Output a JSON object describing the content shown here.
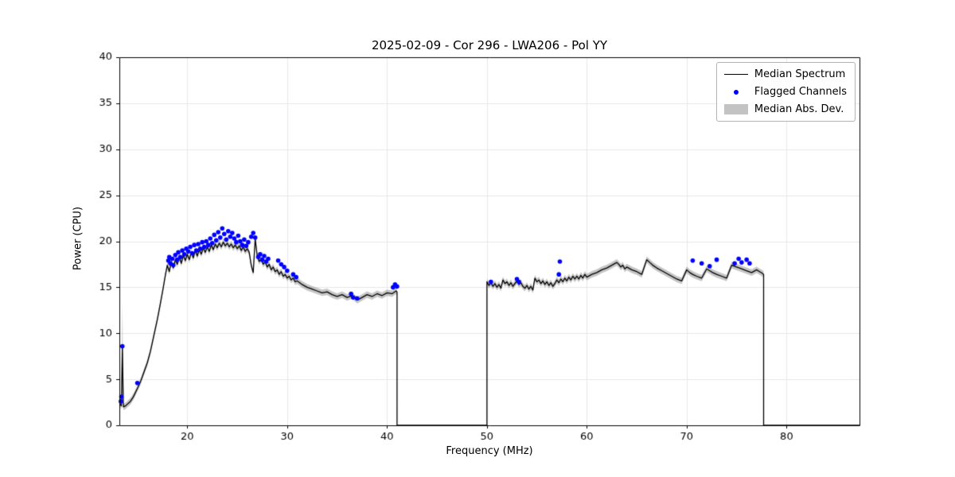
{
  "title": "2025-02-09 - Cor 296 - LWA206 - Pol YY",
  "xlabel": "Frequency (MHz)",
  "ylabel": "Power (CPU)",
  "legend": {
    "median_spectrum": "Median Spectrum",
    "flagged_channels": "Flagged Channels",
    "median_abs_dev": "Median Abs. Dev."
  },
  "colors": {
    "median_line": "#000000",
    "flagged": "#0000ff",
    "mad_band": "rgba(128,128,128,0.45)",
    "grid": "#e7e7e7",
    "spine": "#000000",
    "tick_text": "#000000"
  },
  "chart_data": {
    "type": "line",
    "title": "2025-02-09 - Cor 296 - LWA206 - Pol YY",
    "xlabel": "Frequency (MHz)",
    "ylabel": "Power (CPU)",
    "xlim": [
      13.2,
      87.3
    ],
    "ylim": [
      0,
      40
    ],
    "xticks": [
      20,
      30,
      40,
      50,
      60,
      70,
      80
    ],
    "yticks": [
      0,
      5,
      10,
      15,
      20,
      25,
      30,
      35,
      40
    ],
    "grid": true,
    "legend_position": "upper right",
    "mad": {
      "default_halfwidth": 0.35,
      "spike_x": 13.5,
      "spike_halfwidth": 5.0
    },
    "median_spectrum": [
      [
        13.3,
        2.3
      ],
      [
        13.4,
        2.1
      ],
      [
        13.5,
        8.6
      ],
      [
        13.6,
        2.0
      ],
      [
        13.8,
        2.1
      ],
      [
        14.0,
        2.3
      ],
      [
        14.3,
        2.6
      ],
      [
        14.6,
        3.1
      ],
      [
        15.0,
        4.0
      ],
      [
        15.3,
        4.7
      ],
      [
        15.6,
        5.6
      ],
      [
        16.0,
        6.8
      ],
      [
        16.3,
        8.0
      ],
      [
        16.6,
        9.5
      ],
      [
        17.0,
        11.5
      ],
      [
        17.3,
        13.2
      ],
      [
        17.6,
        15.0
      ],
      [
        17.8,
        16.3
      ],
      [
        18.0,
        17.4
      ],
      [
        18.2,
        16.7
      ],
      [
        18.4,
        17.8
      ],
      [
        18.6,
        17.1
      ],
      [
        18.8,
        18.0
      ],
      [
        19.0,
        17.5
      ],
      [
        19.2,
        18.3
      ],
      [
        19.4,
        17.6
      ],
      [
        19.6,
        18.5
      ],
      [
        19.8,
        17.9
      ],
      [
        20.0,
        18.6
      ],
      [
        20.2,
        18.0
      ],
      [
        20.4,
        18.8
      ],
      [
        20.6,
        18.2
      ],
      [
        20.8,
        19.0
      ],
      [
        21.0,
        18.4
      ],
      [
        21.2,
        19.1
      ],
      [
        21.4,
        18.6
      ],
      [
        21.6,
        19.3
      ],
      [
        21.8,
        18.8
      ],
      [
        22.0,
        19.4
      ],
      [
        22.2,
        18.9
      ],
      [
        22.4,
        19.6
      ],
      [
        22.6,
        19.1
      ],
      [
        22.8,
        19.7
      ],
      [
        23.0,
        19.3
      ],
      [
        23.2,
        19.8
      ],
      [
        23.4,
        19.4
      ],
      [
        23.6,
        19.9
      ],
      [
        23.8,
        19.5
      ],
      [
        24.0,
        19.8
      ],
      [
        24.2,
        19.4
      ],
      [
        24.4,
        19.7
      ],
      [
        24.6,
        19.3
      ],
      [
        24.8,
        19.6
      ],
      [
        25.0,
        19.2
      ],
      [
        25.2,
        19.5
      ],
      [
        25.4,
        19.0
      ],
      [
        25.6,
        19.4
      ],
      [
        25.8,
        18.9
      ],
      [
        26.0,
        19.2
      ],
      [
        26.2,
        18.8
      ],
      [
        26.4,
        17.4
      ],
      [
        26.6,
        16.6
      ],
      [
        26.8,
        20.3
      ],
      [
        27.0,
        18.4
      ],
      [
        27.2,
        17.8
      ],
      [
        27.4,
        18.1
      ],
      [
        27.6,
        17.5
      ],
      [
        27.8,
        17.8
      ],
      [
        28.0,
        17.2
      ],
      [
        28.2,
        17.5
      ],
      [
        28.4,
        16.9
      ],
      [
        28.6,
        17.2
      ],
      [
        28.8,
        16.7
      ],
      [
        29.0,
        16.9
      ],
      [
        29.2,
        16.4
      ],
      [
        29.4,
        16.7
      ],
      [
        29.6,
        16.2
      ],
      [
        29.8,
        16.4
      ],
      [
        30.0,
        16.0
      ],
      [
        30.2,
        16.2
      ],
      [
        30.4,
        15.8
      ],
      [
        30.6,
        16.0
      ],
      [
        30.8,
        15.6
      ],
      [
        31.0,
        15.7
      ],
      [
        31.5,
        15.3
      ],
      [
        32.0,
        15.0
      ],
      [
        32.5,
        14.8
      ],
      [
        33.0,
        14.6
      ],
      [
        33.5,
        14.4
      ],
      [
        34.0,
        14.5
      ],
      [
        34.5,
        14.2
      ],
      [
        35.0,
        14.0
      ],
      [
        35.5,
        14.2
      ],
      [
        36.0,
        13.9
      ],
      [
        36.5,
        14.1
      ],
      [
        37.0,
        13.6
      ],
      [
        37.5,
        13.9
      ],
      [
        38.0,
        14.2
      ],
      [
        38.5,
        14.0
      ],
      [
        39.0,
        14.3
      ],
      [
        39.5,
        14.1
      ],
      [
        40.0,
        14.4
      ],
      [
        40.5,
        14.3
      ],
      [
        40.9,
        14.6
      ],
      [
        41.0,
        14.5
      ],
      [
        41.0,
        0.0
      ],
      [
        50.0,
        0.0
      ],
      [
        50.0,
        15.6
      ],
      [
        50.2,
        15.2
      ],
      [
        50.4,
        15.5
      ],
      [
        50.6,
        15.1
      ],
      [
        50.8,
        15.4
      ],
      [
        51.0,
        15.0
      ],
      [
        51.2,
        15.3
      ],
      [
        51.4,
        14.9
      ],
      [
        51.6,
        15.8
      ],
      [
        51.8,
        15.4
      ],
      [
        52.0,
        15.6
      ],
      [
        52.2,
        15.2
      ],
      [
        52.4,
        15.5
      ],
      [
        52.6,
        15.1
      ],
      [
        52.8,
        15.4
      ],
      [
        53.0,
        15.7
      ],
      [
        53.2,
        15.3
      ],
      [
        53.4,
        15.5
      ],
      [
        53.6,
        15.1
      ],
      [
        53.8,
        14.9
      ],
      [
        54.0,
        15.2
      ],
      [
        54.2,
        14.8
      ],
      [
        54.4,
        15.1
      ],
      [
        54.6,
        14.7
      ],
      [
        54.8,
        16.0
      ],
      [
        55.0,
        15.6
      ],
      [
        55.2,
        15.8
      ],
      [
        55.4,
        15.4
      ],
      [
        55.6,
        15.7
      ],
      [
        55.8,
        15.3
      ],
      [
        56.0,
        15.6
      ],
      [
        56.2,
        15.2
      ],
      [
        56.4,
        15.5
      ],
      [
        56.6,
        15.1
      ],
      [
        56.8,
        15.4
      ],
      [
        57.0,
        15.8
      ],
      [
        57.2,
        15.5
      ],
      [
        57.4,
        15.9
      ],
      [
        57.6,
        15.6
      ],
      [
        57.8,
        16.0
      ],
      [
        58.0,
        15.7
      ],
      [
        58.2,
        16.1
      ],
      [
        58.4,
        15.8
      ],
      [
        58.6,
        16.2
      ],
      [
        58.8,
        15.9
      ],
      [
        59.0,
        16.2
      ],
      [
        59.2,
        15.9
      ],
      [
        59.4,
        16.3
      ],
      [
        59.6,
        16.0
      ],
      [
        59.8,
        16.4
      ],
      [
        60.0,
        16.1
      ],
      [
        60.5,
        16.4
      ],
      [
        61.0,
        16.6
      ],
      [
        61.5,
        16.9
      ],
      [
        62.0,
        17.1
      ],
      [
        62.5,
        17.4
      ],
      [
        63.0,
        17.7
      ],
      [
        63.2,
        17.5
      ],
      [
        63.4,
        17.2
      ],
      [
        63.6,
        17.4
      ],
      [
        63.8,
        17.0
      ],
      [
        64.0,
        17.2
      ],
      [
        64.5,
        16.9
      ],
      [
        65.0,
        16.7
      ],
      [
        65.5,
        16.4
      ],
      [
        66.0,
        18.0
      ],
      [
        66.3,
        17.7
      ],
      [
        66.6,
        17.4
      ],
      [
        67.0,
        17.1
      ],
      [
        67.5,
        16.8
      ],
      [
        68.0,
        16.5
      ],
      [
        68.5,
        16.2
      ],
      [
        69.0,
        15.9
      ],
      [
        69.5,
        15.7
      ],
      [
        70.0,
        16.9
      ],
      [
        70.3,
        16.6
      ],
      [
        70.6,
        16.4
      ],
      [
        71.0,
        16.2
      ],
      [
        71.5,
        16.0
      ],
      [
        72.0,
        17.0
      ],
      [
        72.3,
        16.8
      ],
      [
        72.6,
        16.6
      ],
      [
        73.0,
        16.4
      ],
      [
        73.5,
        16.2
      ],
      [
        74.0,
        16.0
      ],
      [
        74.5,
        17.4
      ],
      [
        75.0,
        17.2
      ],
      [
        75.5,
        17.0
      ],
      [
        76.0,
        16.8
      ],
      [
        76.5,
        16.6
      ],
      [
        77.0,
        16.9
      ],
      [
        77.3,
        16.7
      ],
      [
        77.6,
        16.5
      ],
      [
        77.7,
        16.4
      ],
      [
        77.7,
        0.0
      ],
      [
        87.3,
        0.0
      ]
    ],
    "flagged_channels": [
      [
        13.35,
        2.6
      ],
      [
        13.4,
        3.1
      ],
      [
        13.5,
        8.6
      ],
      [
        15.0,
        4.6
      ],
      [
        18.1,
        17.9
      ],
      [
        18.2,
        18.3
      ],
      [
        18.3,
        17.6
      ],
      [
        18.5,
        18.1
      ],
      [
        18.6,
        17.4
      ],
      [
        18.8,
        18.5
      ],
      [
        19.0,
        18.0
      ],
      [
        19.1,
        18.8
      ],
      [
        19.3,
        18.3
      ],
      [
        19.5,
        19.0
      ],
      [
        19.7,
        18.6
      ],
      [
        19.9,
        19.2
      ],
      [
        20.1,
        18.9
      ],
      [
        20.3,
        19.4
      ],
      [
        20.5,
        18.7
      ],
      [
        20.7,
        19.6
      ],
      [
        20.9,
        19.0
      ],
      [
        21.1,
        19.7
      ],
      [
        21.3,
        19.2
      ],
      [
        21.5,
        19.9
      ],
      [
        21.7,
        19.4
      ],
      [
        21.9,
        20.0
      ],
      [
        22.1,
        19.6
      ],
      [
        22.3,
        20.3
      ],
      [
        22.5,
        19.8
      ],
      [
        22.7,
        20.7
      ],
      [
        22.9,
        20.1
      ],
      [
        23.1,
        21.0
      ],
      [
        23.3,
        20.4
      ],
      [
        23.5,
        21.4
      ],
      [
        23.7,
        20.8
      ],
      [
        23.9,
        20.2
      ],
      [
        24.1,
        21.1
      ],
      [
        24.3,
        20.5
      ],
      [
        24.5,
        20.9
      ],
      [
        24.7,
        20.3
      ],
      [
        24.9,
        19.9
      ],
      [
        25.1,
        20.6
      ],
      [
        25.3,
        20.0
      ],
      [
        25.5,
        19.6
      ],
      [
        25.7,
        20.2
      ],
      [
        25.9,
        19.5
      ],
      [
        26.1,
        19.9
      ],
      [
        26.4,
        20.5
      ],
      [
        26.6,
        20.9
      ],
      [
        26.8,
        20.4
      ],
      [
        27.1,
        18.3
      ],
      [
        27.3,
        18.6
      ],
      [
        27.5,
        18.0
      ],
      [
        27.7,
        18.4
      ],
      [
        27.9,
        17.8
      ],
      [
        28.1,
        18.1
      ],
      [
        29.1,
        17.9
      ],
      [
        29.4,
        17.5
      ],
      [
        29.7,
        17.2
      ],
      [
        30.0,
        16.8
      ],
      [
        30.6,
        16.4
      ],
      [
        30.9,
        16.1
      ],
      [
        36.4,
        14.3
      ],
      [
        36.6,
        13.9
      ],
      [
        37.0,
        13.8
      ],
      [
        40.6,
        15.0
      ],
      [
        40.8,
        15.3
      ],
      [
        41.0,
        15.1
      ],
      [
        50.4,
        15.6
      ],
      [
        53.0,
        15.9
      ],
      [
        53.2,
        15.6
      ],
      [
        57.2,
        16.4
      ],
      [
        57.3,
        17.8
      ],
      [
        70.6,
        17.9
      ],
      [
        71.5,
        17.6
      ],
      [
        72.3,
        17.3
      ],
      [
        73.0,
        18.0
      ],
      [
        74.8,
        17.6
      ],
      [
        75.2,
        18.1
      ],
      [
        75.5,
        17.7
      ],
      [
        76.0,
        18.0
      ],
      [
        76.3,
        17.6
      ]
    ]
  }
}
